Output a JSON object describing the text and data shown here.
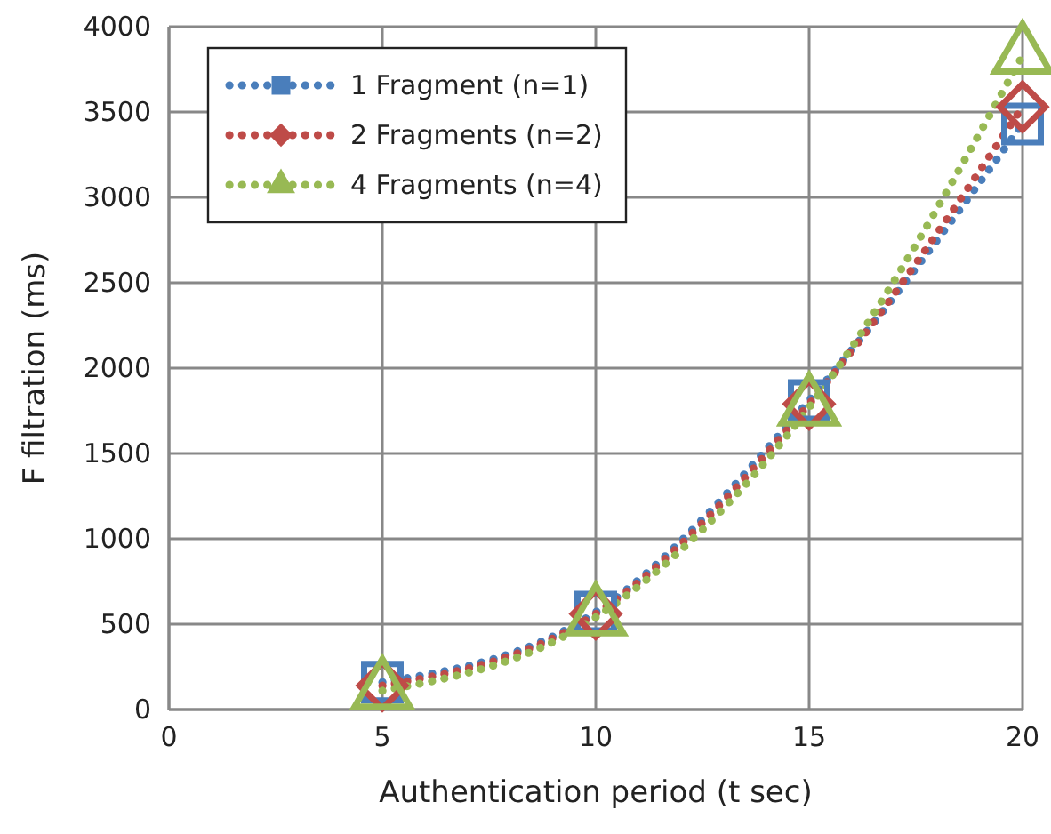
{
  "chart_data": {
    "type": "line",
    "xlabel": "Authentication period (t sec)",
    "ylabel": "F filtration (ms)",
    "x": [
      5,
      10,
      15,
      20
    ],
    "series": [
      {
        "name": "1 Fragment (n=1)",
        "color": "#4a7ebb",
        "marker": "square",
        "values": [
          160,
          570,
          1810,
          3430
        ]
      },
      {
        "name": "2 Fragments (n=2)",
        "color": "#be4b48",
        "marker": "diamond",
        "values": [
          140,
          560,
          1790,
          3530
        ]
      },
      {
        "name": "4 Fragments (n=4)",
        "color": "#98b954",
        "marker": "triangle",
        "values": [
          110,
          540,
          1770,
          3830
        ]
      }
    ],
    "xlim": [
      0,
      20
    ],
    "xticks": [
      0,
      5,
      10,
      15,
      20
    ],
    "ylim": [
      0,
      4000
    ],
    "yticks": [
      0,
      500,
      1000,
      1500,
      2000,
      2500,
      3000,
      3500,
      4000
    ],
    "grid": true,
    "legend": "top left",
    "line_style": "dotted"
  }
}
